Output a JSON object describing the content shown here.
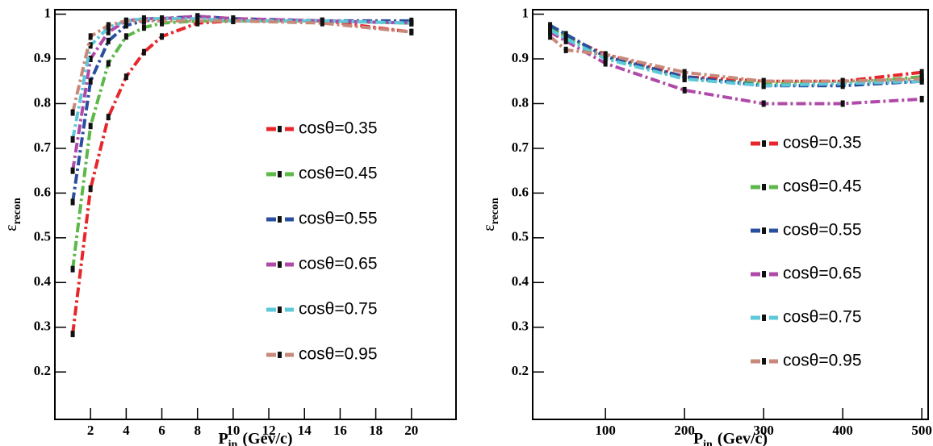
{
  "chart_data": [
    {
      "type": "line",
      "x_label": {
        "main": "P",
        "sub": "in",
        "unit": "(Gev/c)"
      },
      "y_label": {
        "main": "ε",
        "sub": "recon"
      },
      "x": [
        1,
        2,
        3,
        4,
        5,
        6,
        8,
        10,
        15,
        20
      ],
      "xlim": [
        0,
        22.5
      ],
      "xticks": [
        2,
        4,
        6,
        8,
        10,
        12,
        14,
        16,
        18,
        20
      ],
      "ylim": [
        0.094,
        1.01
      ],
      "yticks": [
        0.2,
        0.3,
        0.4,
        0.5,
        0.6,
        0.7,
        0.8,
        0.9,
        1
      ],
      "series": [
        {
          "name": "cosθ=0.35",
          "color": "#e8262a",
          "values": [
            0.285,
            0.61,
            0.77,
            0.86,
            0.915,
            0.95,
            0.98,
            0.985,
            0.985,
            0.96
          ]
        },
        {
          "name": "cosθ=0.45",
          "color": "#5cb848",
          "values": [
            0.43,
            0.75,
            0.89,
            0.95,
            0.97,
            0.98,
            0.985,
            0.985,
            0.985,
            0.98
          ]
        },
        {
          "name": "cosθ=0.55",
          "color": "#2a4fa0",
          "values": [
            0.58,
            0.85,
            0.94,
            0.975,
            0.985,
            0.99,
            0.995,
            0.99,
            0.985,
            0.985
          ]
        },
        {
          "name": "cosθ=0.65",
          "color": "#b04aa8",
          "values": [
            0.65,
            0.9,
            0.96,
            0.985,
            0.99,
            0.99,
            0.995,
            0.99,
            0.985,
            0.98
          ]
        },
        {
          "name": "cosθ=0.75",
          "color": "#5dc9d8",
          "values": [
            0.72,
            0.93,
            0.97,
            0.985,
            0.99,
            0.99,
            0.99,
            0.985,
            0.985,
            0.98
          ]
        },
        {
          "name": "cosθ=0.95",
          "color": "#c8897a",
          "values": [
            0.78,
            0.95,
            0.975,
            0.985,
            0.985,
            0.985,
            0.985,
            0.985,
            0.98,
            0.96
          ]
        }
      ]
    },
    {
      "type": "line",
      "x_label": {
        "main": "P",
        "sub": "in",
        "unit": "(Gev/c)"
      },
      "y_label": {
        "main": "ε",
        "sub": "recon"
      },
      "x": [
        30,
        50,
        100,
        200,
        300,
        400,
        500
      ],
      "xlim": [
        8,
        508
      ],
      "xticks": [
        100,
        200,
        300,
        400,
        500
      ],
      "ylim": [
        0.094,
        1.01
      ],
      "yticks": [
        0.2,
        0.3,
        0.4,
        0.5,
        0.6,
        0.7,
        0.8,
        0.9,
        1
      ],
      "series": [
        {
          "name": "cosθ=0.35",
          "color": "#e8262a",
          "values": [
            0.97,
            0.95,
            0.91,
            0.86,
            0.85,
            0.85,
            0.87
          ]
        },
        {
          "name": "cosθ=0.45",
          "color": "#5cb848",
          "values": [
            0.97,
            0.95,
            0.905,
            0.855,
            0.845,
            0.845,
            0.86
          ]
        },
        {
          "name": "cosθ=0.55",
          "color": "#2a4fa0",
          "values": [
            0.975,
            0.955,
            0.905,
            0.86,
            0.84,
            0.84,
            0.85
          ]
        },
        {
          "name": "cosθ=0.65",
          "color": "#b04aa8",
          "values": [
            0.96,
            0.94,
            0.89,
            0.83,
            0.8,
            0.8,
            0.81
          ]
        },
        {
          "name": "cosθ=0.75",
          "color": "#5dc9d8",
          "values": [
            0.965,
            0.945,
            0.9,
            0.855,
            0.84,
            0.845,
            0.85
          ]
        },
        {
          "name": "cosθ=0.95",
          "color": "#c8897a",
          "values": [
            0.95,
            0.92,
            0.91,
            0.87,
            0.85,
            0.85,
            0.855
          ]
        }
      ]
    }
  ]
}
